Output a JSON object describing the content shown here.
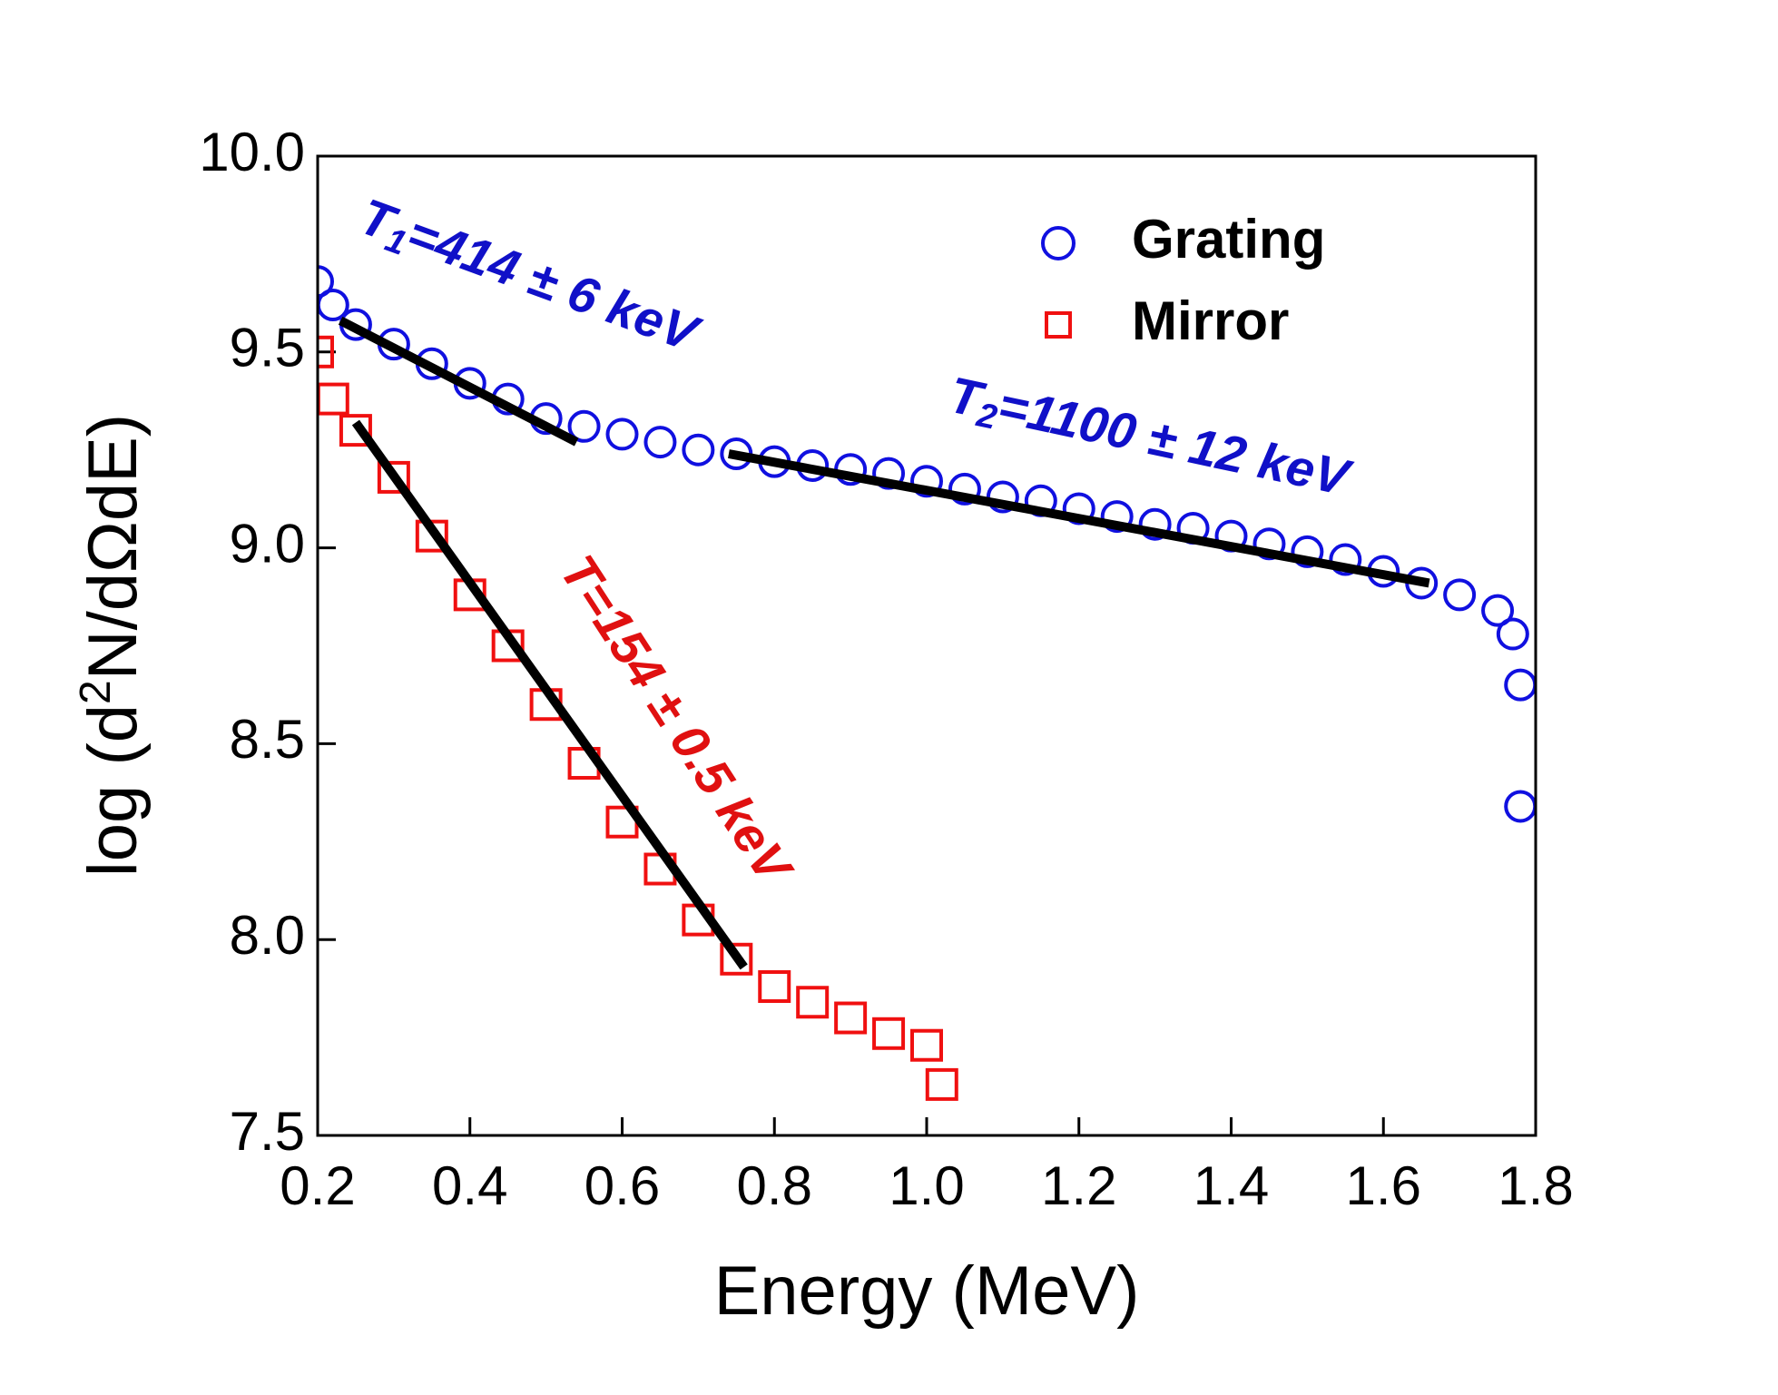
{
  "chart_data": {
    "type": "scatter",
    "xlabel": "Energy (MeV)",
    "ylabel": [
      "log (d",
      "2",
      "N/dΩdE)"
    ],
    "xlim": [
      0.2,
      1.8
    ],
    "ylim": [
      7.5,
      10.0
    ],
    "xticks": [
      0.2,
      0.4,
      0.6,
      0.8,
      {
        "value": 1,
        "label": "1.0"
      },
      1.2,
      1.4,
      1.6,
      1.8
    ],
    "yticks": [
      {
        "value": 7.5,
        "label": "7.5"
      },
      {
        "value": 8,
        "label": "8.0"
      },
      {
        "value": 8.5,
        "label": "8.5"
      },
      {
        "value": 9,
        "label": "9.0"
      },
      {
        "value": 9.5,
        "label": "9.5"
      },
      {
        "value": 10,
        "label": "10.0"
      }
    ],
    "series": [
      {
        "name": "Grating",
        "color": "#1010e0",
        "marker": "circle",
        "x": [
          0.2,
          0.22,
          0.25,
          0.3,
          0.35,
          0.4,
          0.45,
          0.5,
          0.55,
          0.6,
          0.65,
          0.7,
          0.75,
          0.8,
          0.85,
          0.9,
          0.95,
          1.0,
          1.05,
          1.1,
          1.15,
          1.2,
          1.25,
          1.3,
          1.35,
          1.4,
          1.45,
          1.5,
          1.55,
          1.6,
          1.65,
          1.7,
          1.75,
          1.77,
          1.78,
          1.78
        ],
        "values": [
          9.68,
          9.62,
          9.57,
          9.52,
          9.47,
          9.42,
          9.38,
          9.33,
          9.31,
          9.29,
          9.27,
          9.25,
          9.24,
          9.22,
          9.21,
          9.2,
          9.19,
          9.17,
          9.15,
          9.13,
          9.12,
          9.1,
          9.08,
          9.06,
          9.05,
          9.03,
          9.01,
          8.99,
          8.97,
          8.94,
          8.91,
          8.88,
          8.84,
          8.78,
          8.65,
          8.34
        ]
      },
      {
        "name": "Mirror",
        "color": "#f01010",
        "marker": "square",
        "x": [
          0.2,
          0.22,
          0.25,
          0.3,
          0.35,
          0.4,
          0.45,
          0.5,
          0.55,
          0.6,
          0.65,
          0.7,
          0.75,
          0.8,
          0.85,
          0.9,
          0.95,
          1.0,
          1.02
        ],
        "values": [
          9.5,
          9.38,
          9.3,
          9.18,
          9.03,
          8.88,
          8.75,
          8.6,
          8.45,
          8.3,
          8.18,
          8.05,
          7.95,
          7.88,
          7.84,
          7.8,
          7.76,
          7.73,
          7.63
        ]
      }
    ],
    "fits": [
      {
        "x": [
          0.23,
          0.54
        ],
        "values": [
          9.58,
          9.27
        ]
      },
      {
        "x": [
          0.74,
          1.66
        ],
        "values": [
          9.24,
          8.91
        ]
      },
      {
        "x": [
          0.25,
          0.76
        ],
        "values": [
          9.32,
          7.93
        ]
      }
    ],
    "annotations": [
      [
        "T",
        "1",
        "=414 ± 6 keV"
      ],
      [
        "T",
        "2",
        "=1100 ± 12 keV"
      ],
      [
        "T=154 ± 0.5 keV"
      ]
    ]
  }
}
